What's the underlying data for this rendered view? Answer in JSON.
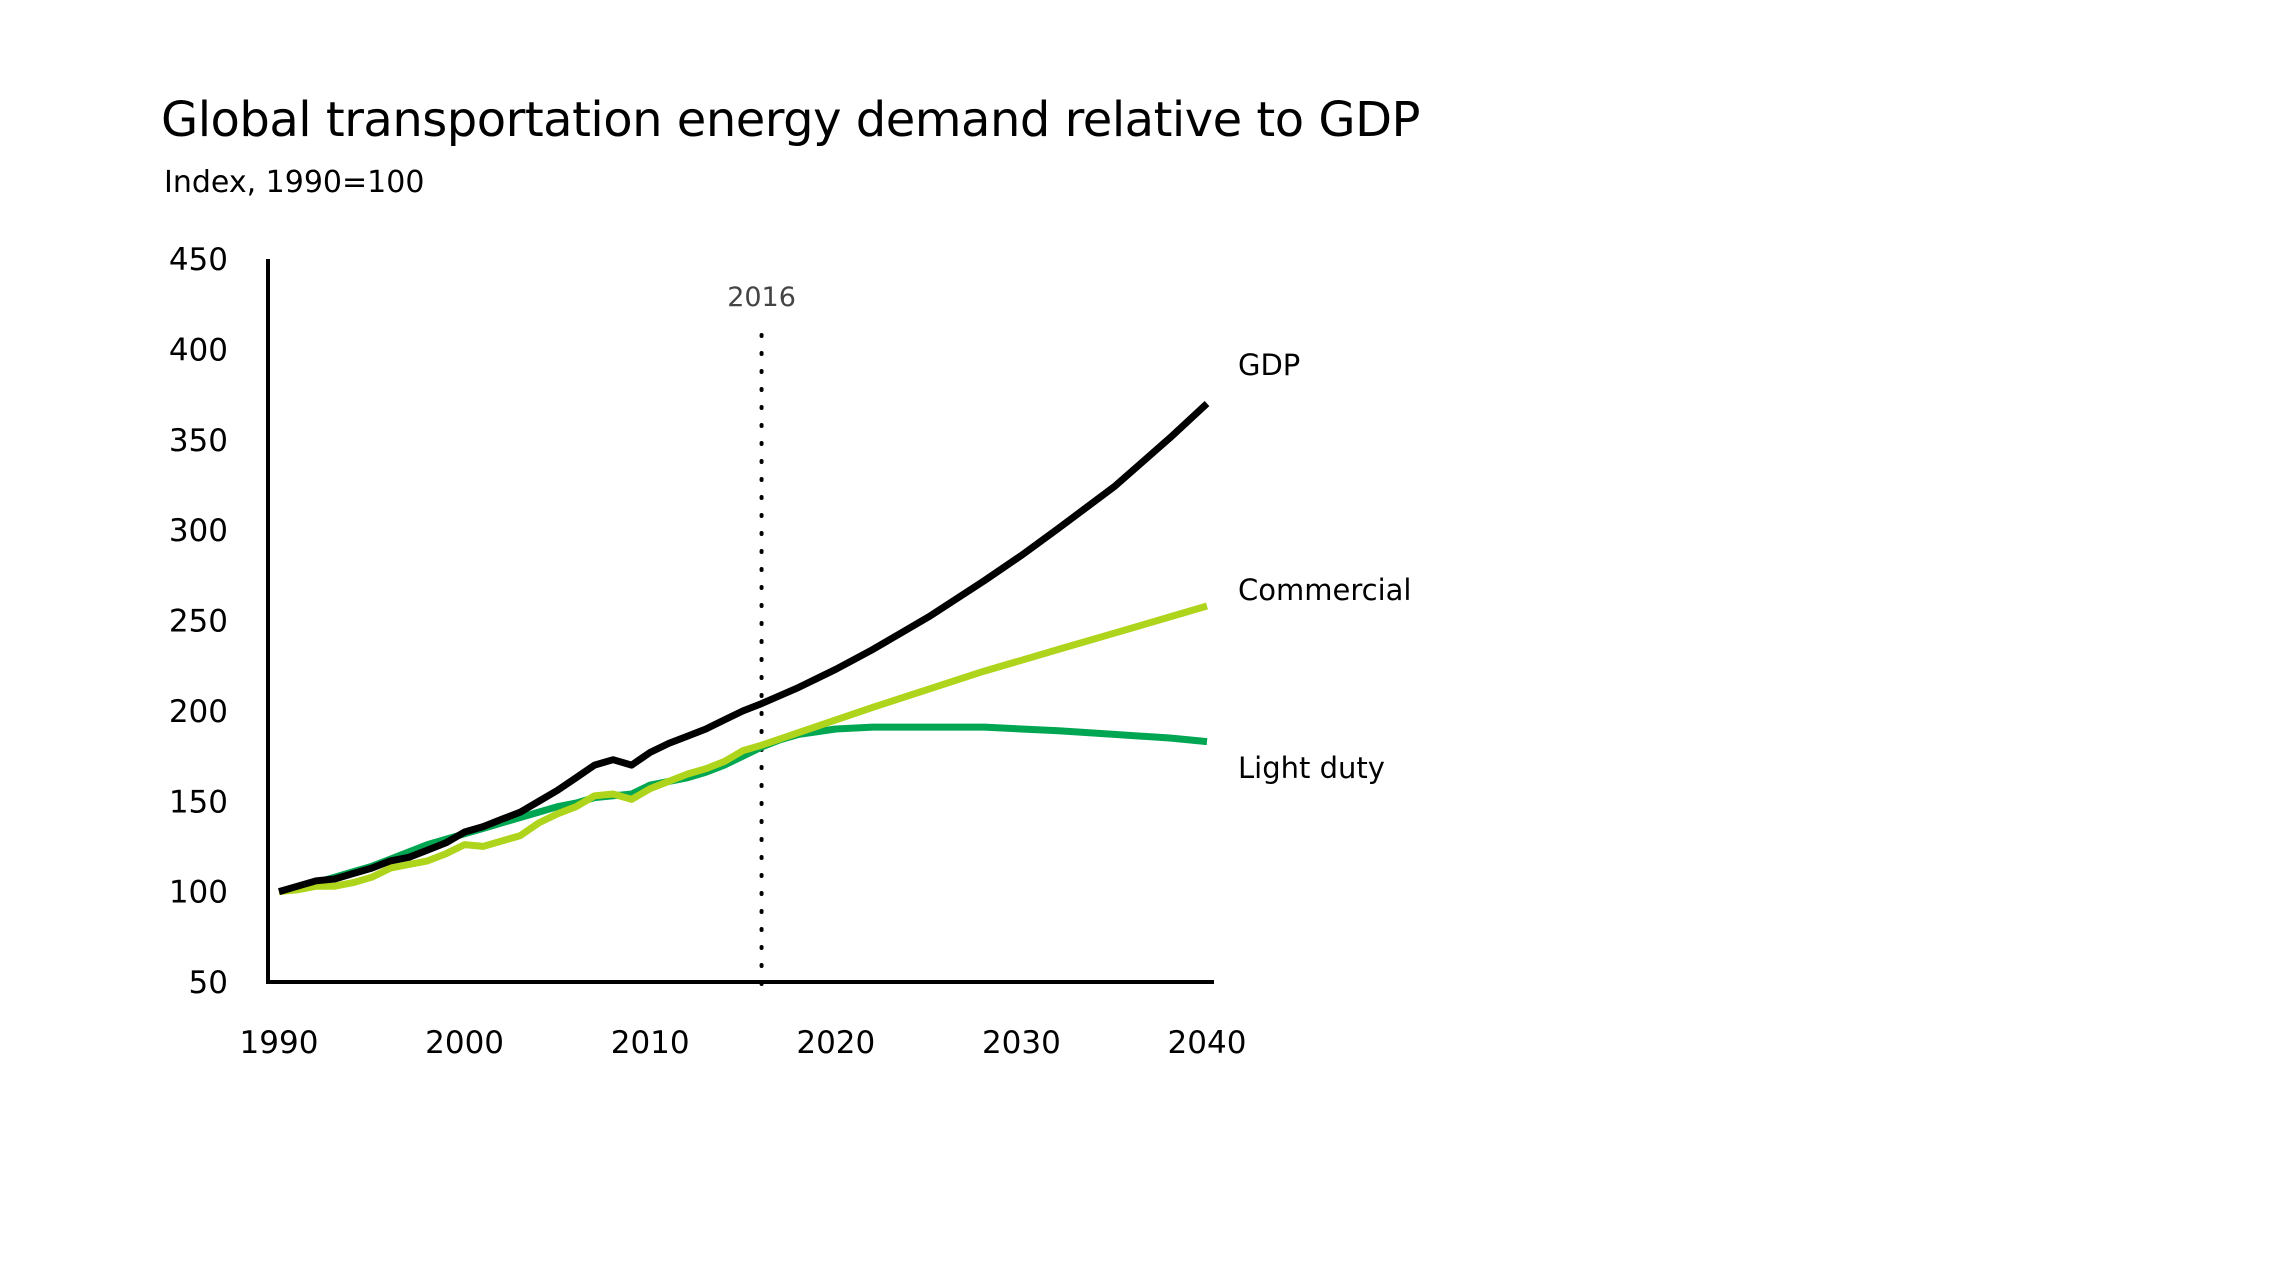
{
  "chart_data": {
    "type": "line",
    "title": "Global transportation energy demand relative to GDP",
    "subtitle": "Index, 1990=100",
    "xlabel": "",
    "ylabel": "",
    "xlim": [
      1990,
      2040
    ],
    "ylim": [
      50,
      450
    ],
    "x_ticks": [
      1990,
      2000,
      2010,
      2020,
      2030,
      2040
    ],
    "y_ticks": [
      50,
      100,
      150,
      200,
      250,
      300,
      350,
      400,
      450
    ],
    "reference_line": {
      "x": 2016,
      "label": "2016",
      "style": "dotted"
    },
    "series": [
      {
        "name": "GDP",
        "color": "#000000",
        "x": [
          1990,
          1991,
          1992,
          1993,
          1994,
          1995,
          1996,
          1997,
          1998,
          1999,
          2000,
          2001,
          2002,
          2003,
          2004,
          2005,
          2006,
          2007,
          2008,
          2009,
          2010,
          2011,
          2012,
          2013,
          2014,
          2015,
          2016,
          2018,
          2020,
          2022,
          2025,
          2028,
          2030,
          2032,
          2035,
          2038,
          2040
        ],
        "values": [
          100,
          103,
          106,
          107,
          110,
          113,
          117,
          119,
          123,
          127,
          133,
          136,
          140,
          144,
          150,
          156,
          163,
          170,
          173,
          170,
          177,
          182,
          186,
          190,
          195,
          200,
          204,
          213,
          223,
          234,
          252,
          272,
          286,
          301,
          324,
          351,
          370
        ]
      },
      {
        "name": "Commercial",
        "color": "#aed41b",
        "x": [
          1990,
          1991,
          1992,
          1993,
          1994,
          1995,
          1996,
          1997,
          1998,
          1999,
          2000,
          2001,
          2002,
          2003,
          2004,
          2005,
          2006,
          2007,
          2008,
          2009,
          2010,
          2011,
          2012,
          2013,
          2014,
          2015,
          2016,
          2018,
          2020,
          2022,
          2025,
          2028,
          2030,
          2032,
          2035,
          2038,
          2040
        ],
        "values": [
          100,
          101,
          103,
          103,
          105,
          108,
          113,
          115,
          117,
          121,
          126,
          125,
          128,
          131,
          138,
          143,
          147,
          153,
          154,
          151,
          157,
          161,
          165,
          168,
          172,
          178,
          181,
          188,
          195,
          202,
          212,
          222,
          228,
          234,
          243,
          252,
          258
        ]
      },
      {
        "name": "Light duty",
        "color": "#00a651",
        "x": [
          1990,
          1991,
          1992,
          1993,
          1994,
          1995,
          1996,
          1997,
          1998,
          1999,
          2000,
          2001,
          2002,
          2003,
          2004,
          2005,
          2006,
          2007,
          2008,
          2009,
          2010,
          2011,
          2012,
          2013,
          2014,
          2015,
          2016,
          2017,
          2018,
          2020,
          2022,
          2025,
          2028,
          2030,
          2032,
          2035,
          2038,
          2040
        ],
        "values": [
          100,
          102,
          105,
          108,
          111,
          114,
          118,
          122,
          126,
          129,
          132,
          135,
          138,
          141,
          144,
          147,
          149,
          152,
          153,
          154,
          159,
          161,
          163,
          166,
          170,
          175,
          180,
          184,
          187,
          190,
          191,
          191,
          191,
          190,
          189,
          187,
          185,
          183
        ]
      }
    ],
    "legend": "inline labels at right end of each line"
  }
}
